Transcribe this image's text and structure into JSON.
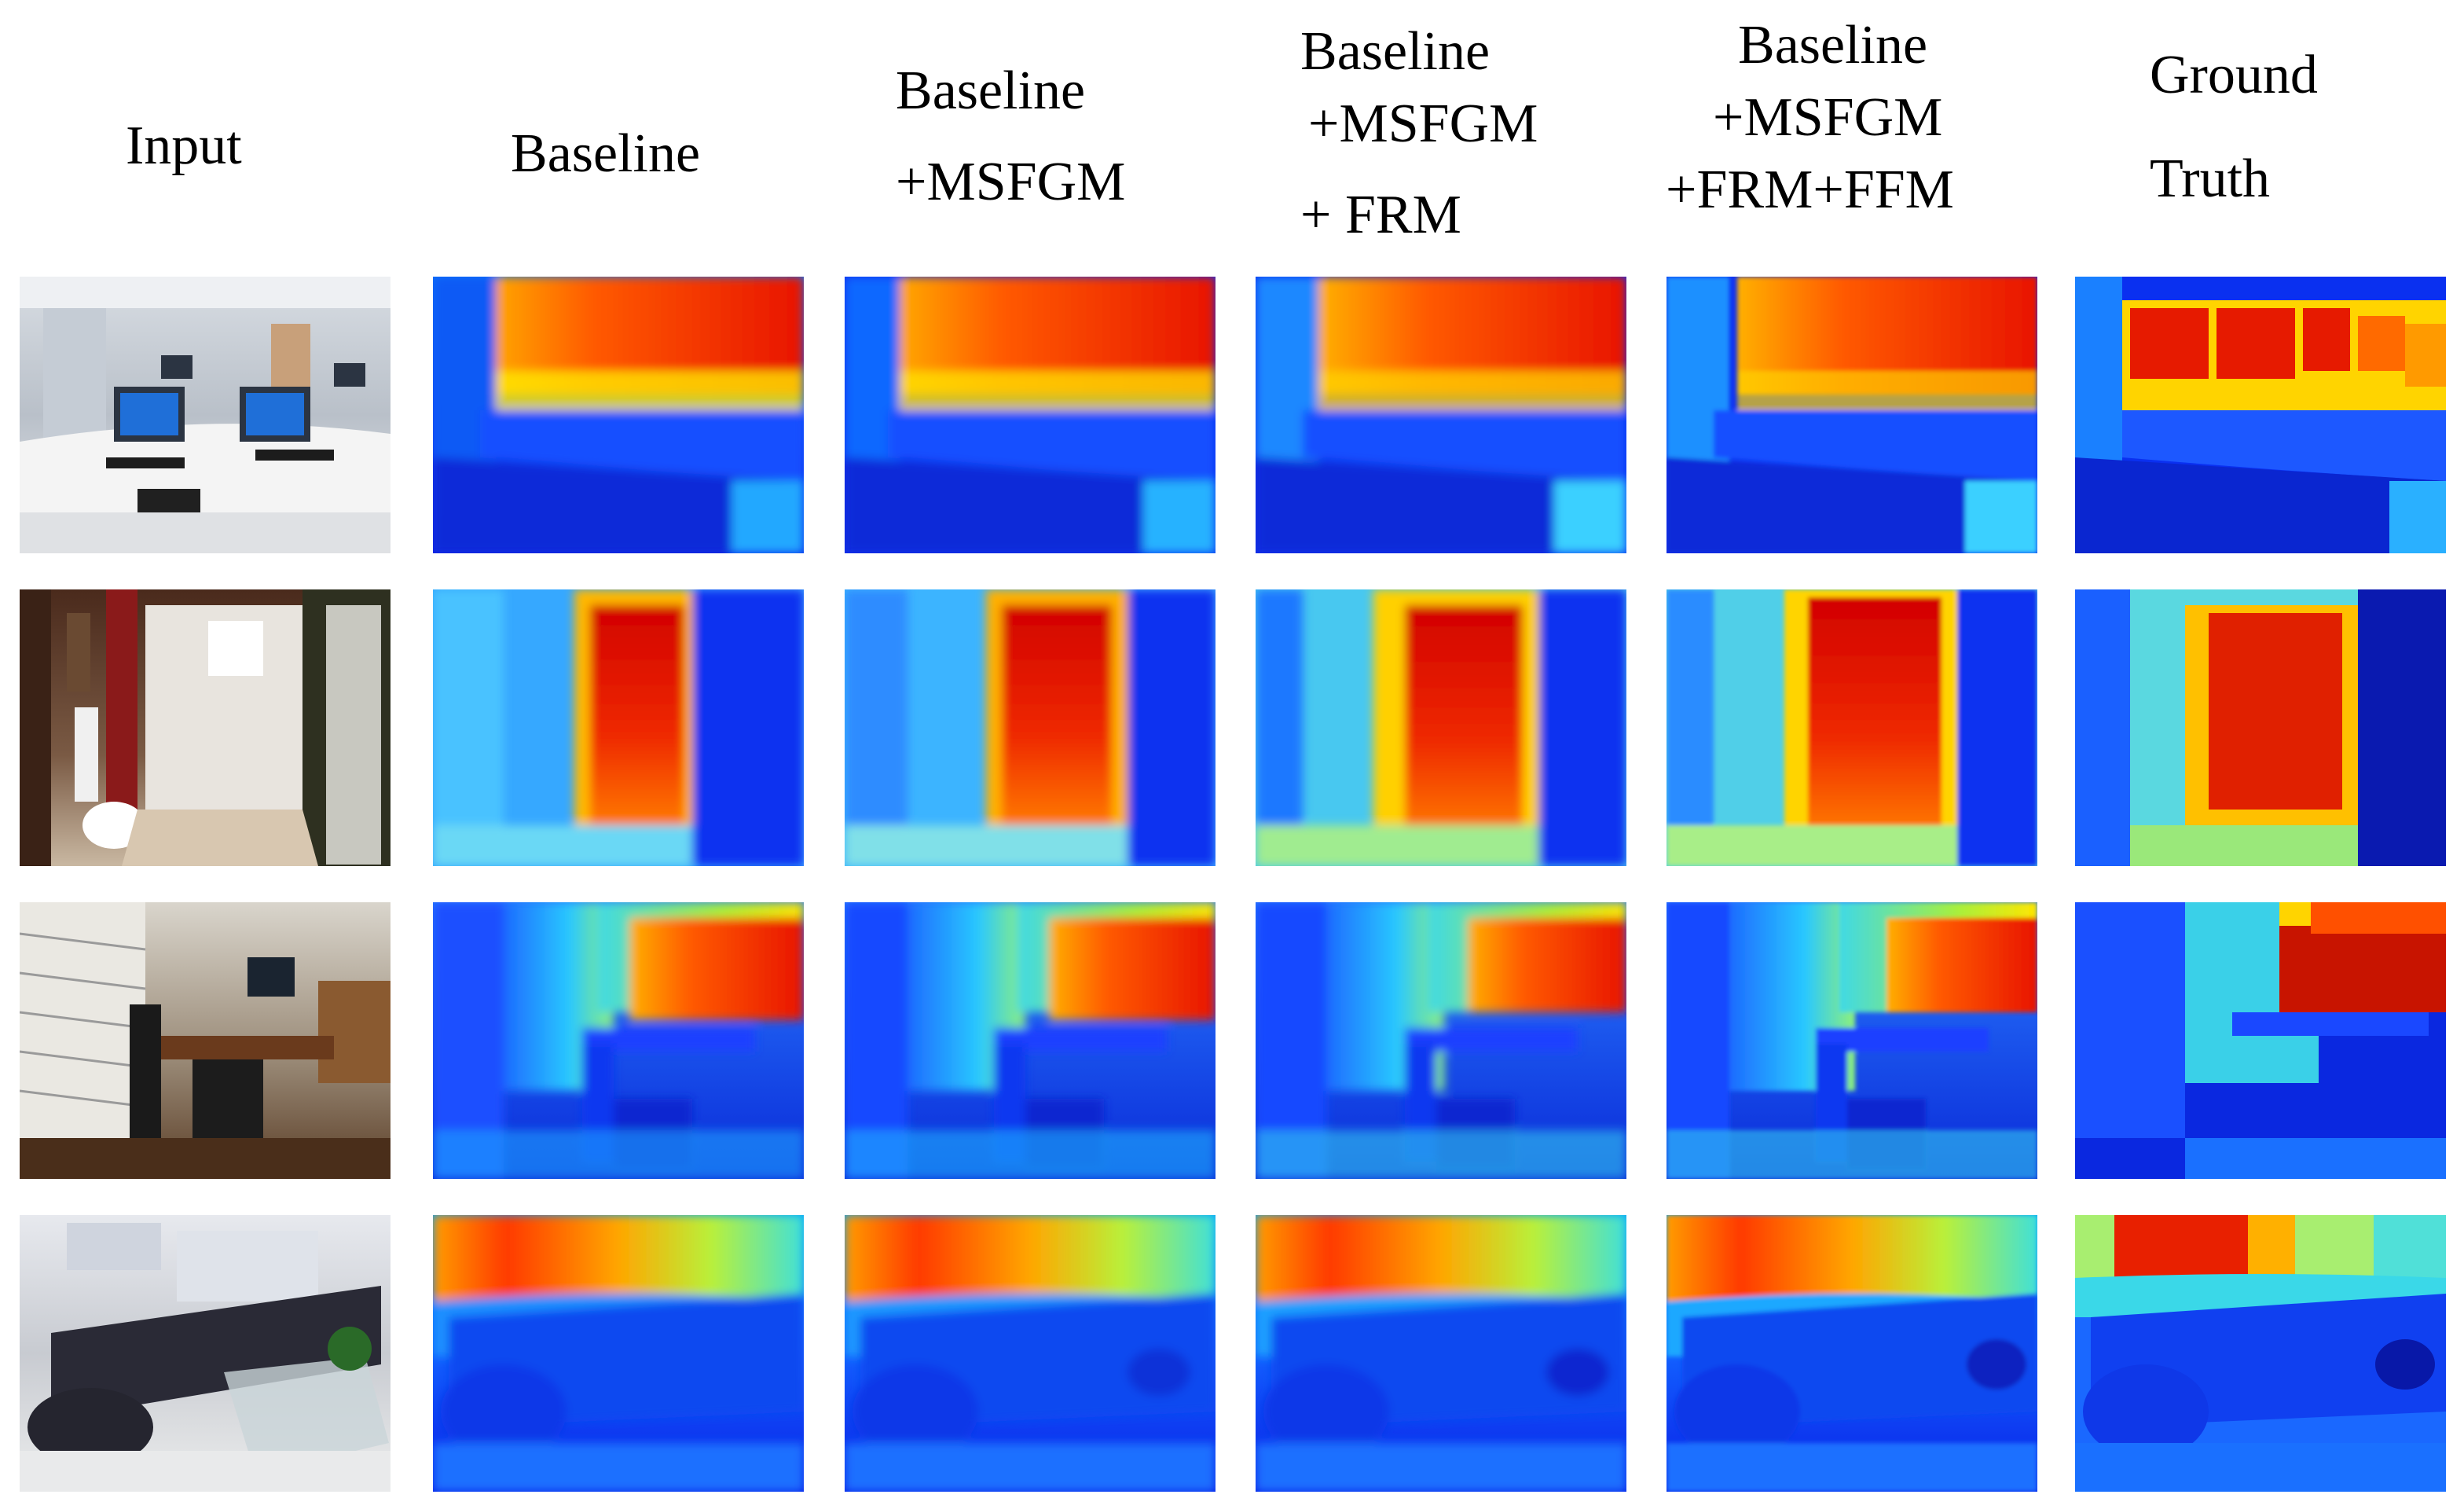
{
  "figure": {
    "columns": [
      {
        "id": "input",
        "title_lines": [
          "Input"
        ]
      },
      {
        "id": "baseline",
        "title_lines": [
          "Baseline"
        ]
      },
      {
        "id": "msfgm",
        "title_lines": [
          "Baseline",
          "+MSFGM"
        ]
      },
      {
        "id": "msfgm_frm",
        "title_lines": [
          "Baseline",
          "+MSFGM",
          "+ FRM"
        ]
      },
      {
        "id": "msfgm_frm_ffm",
        "title_lines": [
          "Baseline",
          "+MSFGM",
          "+FRM+FFM"
        ]
      },
      {
        "id": "ground_truth",
        "title_lines": [
          "Ground",
          "Truth"
        ]
      }
    ],
    "rows": [
      {
        "scene": "computer lab"
      },
      {
        "scene": "bathroom doorway"
      },
      {
        "scene": "dining room"
      },
      {
        "scene": "living room"
      }
    ],
    "colormap": "jet"
  }
}
